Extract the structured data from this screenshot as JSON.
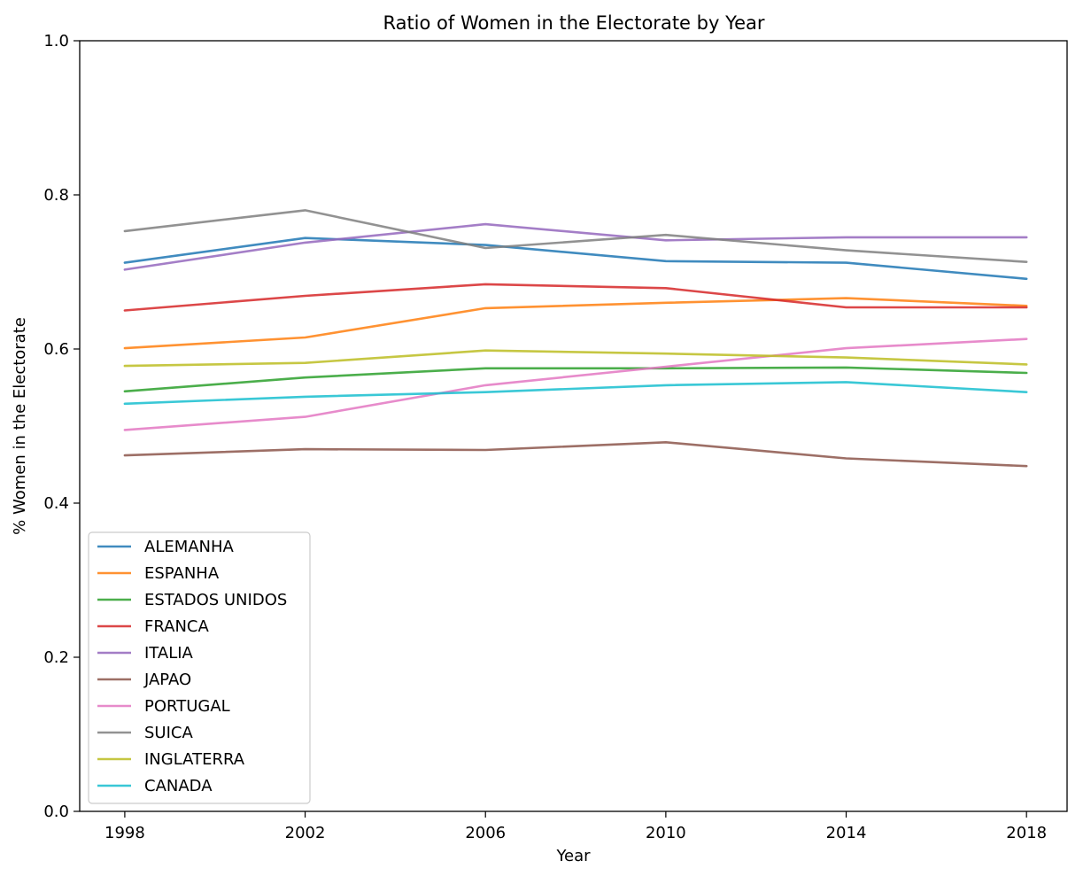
{
  "chart_data": {
    "type": "line",
    "title": "Ratio of Women in the Electorate by Year",
    "xlabel": "Year",
    "ylabel": "% Women in the Electorate",
    "x": [
      1998,
      2002,
      2006,
      2010,
      2014,
      2018
    ],
    "xticks": [
      "1998",
      "2002",
      "2006",
      "2010",
      "2014",
      "2018"
    ],
    "xlim": [
      1997,
      2018.9
    ],
    "ylim": [
      0,
      1
    ],
    "yticks": [
      "0.0",
      "0.2",
      "0.4",
      "0.6",
      "0.8",
      "1.0"
    ],
    "grid": false,
    "legend_position": "lower-left",
    "series": [
      {
        "name": "ALEMANHA",
        "color": "#1f77b4",
        "values": [
          0.712,
          0.744,
          0.735,
          0.714,
          0.712,
          0.691
        ]
      },
      {
        "name": "ESPANHA",
        "color": "#ff7f0e",
        "values": [
          0.601,
          0.615,
          0.653,
          0.66,
          0.666,
          0.656
        ]
      },
      {
        "name": "ESTADOS UNIDOS",
        "color": "#2ca02c",
        "values": [
          0.545,
          0.563,
          0.575,
          0.575,
          0.576,
          0.569
        ]
      },
      {
        "name": "FRANCA",
        "color": "#d62728",
        "values": [
          0.65,
          0.669,
          0.684,
          0.679,
          0.654,
          0.654
        ]
      },
      {
        "name": "ITALIA",
        "color": "#9467bd",
        "values": [
          0.703,
          0.738,
          0.762,
          0.741,
          0.745,
          0.745
        ]
      },
      {
        "name": "JAPAO",
        "color": "#8c564b",
        "values": [
          0.462,
          0.47,
          0.469,
          0.479,
          0.458,
          0.448
        ]
      },
      {
        "name": "PORTUGAL",
        "color": "#e377c2",
        "values": [
          0.495,
          0.512,
          0.553,
          0.577,
          0.601,
          0.613
        ]
      },
      {
        "name": "SUICA",
        "color": "#7f7f7f",
        "values": [
          0.753,
          0.78,
          0.731,
          0.748,
          0.728,
          0.713
        ]
      },
      {
        "name": "INGLATERRA",
        "color": "#bcbd22",
        "values": [
          0.578,
          0.582,
          0.598,
          0.594,
          0.589,
          0.58
        ]
      },
      {
        "name": "CANADA",
        "color": "#17becf",
        "values": [
          0.529,
          0.538,
          0.544,
          0.553,
          0.557,
          0.544
        ]
      }
    ]
  }
}
